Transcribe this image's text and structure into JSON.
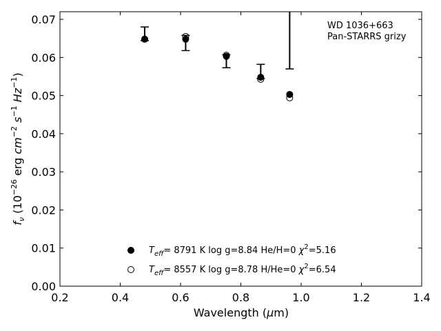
{
  "chart_data": {
    "type": "scatter",
    "title": "",
    "xlabel": "Wavelength (μm)",
    "ylabel": "fν (10⁻²⁶ erg cm⁻² s⁻¹ Hz⁻¹)",
    "xlim": [
      0.2,
      1.4
    ],
    "ylim": [
      0.0,
      0.072
    ],
    "xticks": [
      0.2,
      0.4,
      0.6,
      0.8,
      1.0,
      1.2,
      1.4
    ],
    "xtick_labels": [
      "0.2",
      "0.4",
      "0.6",
      "0.8",
      "1.0",
      "1.2",
      "1.4"
    ],
    "yticks": [
      0.0,
      0.01,
      0.02,
      0.03,
      0.04,
      0.05,
      0.06,
      0.07
    ],
    "ytick_labels": [
      "0.00",
      "0.01",
      "0.02",
      "0.03",
      "0.04",
      "0.05",
      "0.06",
      "0.07"
    ],
    "grid": false,
    "annotation": [
      "WD 1036+663",
      "Pan-STARRS grizy"
    ],
    "observed": {
      "x": [
        0.481,
        0.617,
        0.752,
        0.866,
        0.962
      ],
      "y": [
        0.0662,
        0.0638,
        0.0593,
        0.056,
        0.0645
      ],
      "yerr_low": [
        0.0018,
        0.002,
        0.002,
        0.0015,
        0.0075
      ],
      "yerr_high": [
        0.0018,
        0.002,
        0.0014,
        0.0022,
        0.008
      ]
    },
    "series": [
      {
        "marker": "filled-circle",
        "x": [
          0.481,
          0.617,
          0.752,
          0.866,
          0.962
        ],
        "y": [
          0.0648,
          0.0648,
          0.0603,
          0.0548,
          0.0503
        ]
      },
      {
        "marker": "open-circle",
        "x": [
          0.481,
          0.617,
          0.752,
          0.866,
          0.962
        ],
        "y": [
          0.0648,
          0.0655,
          0.0606,
          0.0543,
          0.0494
        ]
      }
    ],
    "legend": {
      "placement": "lower-center",
      "entries": [
        {
          "marker": "filled-circle",
          "teff_value": "8791 K",
          "logg": "log g=8.84",
          "comp": "He/H=0",
          "chi2": "=5.16"
        },
        {
          "marker": "open-circle",
          "teff_value": "8557 K",
          "logg": "log g=8.78",
          "comp": "H/He=0",
          "chi2": "=6.54"
        }
      ]
    }
  }
}
